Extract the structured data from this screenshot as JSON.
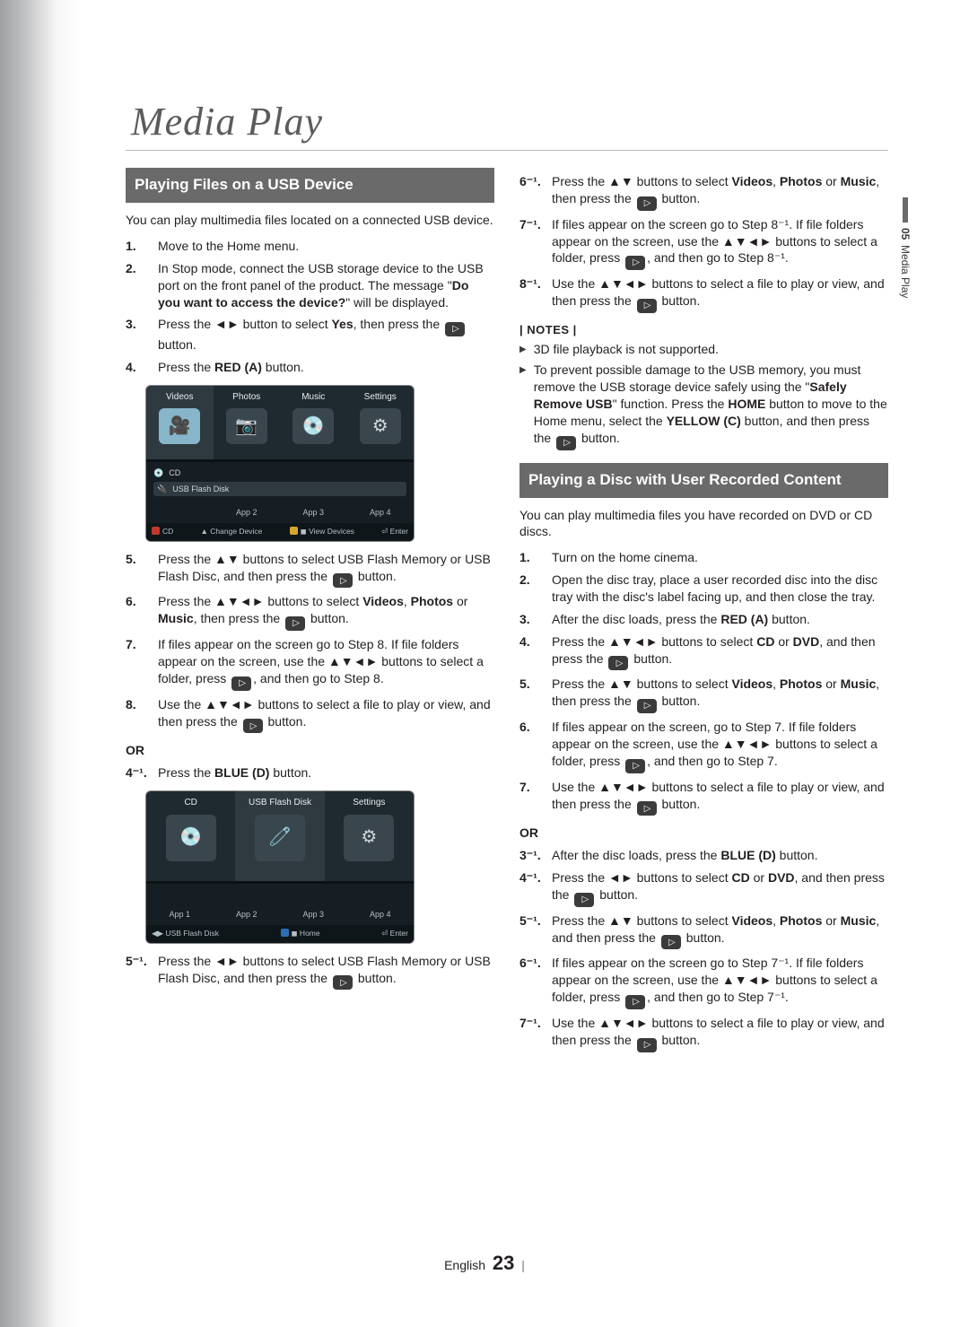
{
  "chapter_title": "Media Play",
  "chapter_title_fontsize": 44,
  "side_tab": {
    "number": "05",
    "label": "Media Play"
  },
  "footer": {
    "lang": "English",
    "page": "23"
  },
  "colLeft": {
    "section1_title": "Playing Files on a USB Device",
    "intro": "You can play multimedia files located on a connected USB device.",
    "steps_a": [
      {
        "n": "1.",
        "text": "Move to the Home menu."
      },
      {
        "n": "2.",
        "text_html": "In Stop mode, connect the USB storage device to the USB port on the front panel of the product. The message \"<b>Do you want to access the device?</b>\" will be displayed."
      },
      {
        "n": "3.",
        "text_html": "Press the <span class='arrows'>◄►</span> button to select <b>Yes</b>, then press the <span class='enter-icon' data-name='enter-icon' data-interactable='false'></span> button."
      },
      {
        "n": "4.",
        "text_html": "Press the <b>RED (A)</b> button."
      }
    ],
    "shot1": {
      "tiles": [
        {
          "key": "videos",
          "label": "Videos",
          "emoji": "🎥",
          "selected": true
        },
        {
          "key": "photos",
          "label": "Photos",
          "emoji": "📷",
          "selected": false
        },
        {
          "key": "music",
          "label": "Music",
          "emoji": "💿",
          "selected": false
        },
        {
          "key": "settings",
          "label": "Settings",
          "emoji": "⚙",
          "selected": false
        }
      ],
      "mid_rows": [
        {
          "icon": "💿",
          "text": "CD",
          "selected": false
        },
        {
          "icon": "🔌",
          "text": "USB Flash Disk",
          "selected": true
        }
      ],
      "apps": [
        "",
        "App 2",
        "App 3",
        "App 4"
      ],
      "legend": [
        {
          "chip": "red",
          "text": "CD"
        },
        {
          "chip": "",
          "text": "▲ Change Device"
        },
        {
          "chip": "yellow",
          "text": "◼ View Devices"
        },
        {
          "chip": "",
          "text": "⏎ Enter"
        }
      ]
    },
    "steps_b": [
      {
        "n": "5.",
        "text_html": "Press the <span class='arrows'>▲▼</span> buttons to select USB Flash Memory or USB Flash Disc, and then press the <span class='enter-icon' data-name='enter-icon' data-interactable='false'></span> button."
      },
      {
        "n": "6.",
        "text_html": "Press the <span class='arrows'>▲▼◄►</span> buttons to select <b>Videos</b>, <b>Photos</b> or <b>Music</b>, then press the <span class='enter-icon' data-name='enter-icon' data-interactable='false'></span> button."
      },
      {
        "n": "7.",
        "text_html": "If files appear on the screen go to Step 8. If file folders appear on the screen, use the <span class='arrows'>▲▼◄►</span> buttons to select a folder, press <span class='enter-icon' data-name='enter-icon' data-interactable='false'></span>, and then go to Step 8."
      },
      {
        "n": "8.",
        "text_html": "Use the <span class='arrows'>▲▼◄►</span> buttons to select a file to play or view, and then press the <span class='enter-icon' data-name='enter-icon' data-interactable='false'></span> button."
      }
    ],
    "or_label": "OR",
    "step_4_1": {
      "n": "4⁻¹.",
      "text_html": "Press the <b>BLUE (D)</b> button."
    },
    "shot2": {
      "tiles": [
        {
          "key": "cd",
          "label": "CD",
          "emoji": "💿",
          "selected": false
        },
        {
          "key": "usb",
          "label": "USB Flash Disk",
          "emoji": "🧷",
          "selected": true
        },
        {
          "key": "settings",
          "label": "Settings",
          "emoji": "⚙",
          "selected": false
        }
      ],
      "apps": [
        "App 1",
        "App 2",
        "App 3",
        "App 4"
      ],
      "legend": [
        {
          "chip": "",
          "text": "◀▶ USB Flash Disk"
        },
        {
          "chip": "blue",
          "text": "◼ Home"
        },
        {
          "chip": "",
          "text": "⏎ Enter"
        }
      ]
    },
    "step_5_1": {
      "n": "5⁻¹.",
      "text_html": "Press the <span class='arrows'>◄►</span> buttons to select USB Flash Memory or USB Flash Disc, and then press the <span class='enter-icon' data-name='enter-icon' data-interactable='false'></span> button."
    }
  },
  "colRight": {
    "steps_top": [
      {
        "n": "6⁻¹.",
        "text_html": "Press the <span class='arrows'>▲▼</span> buttons to select <b>Videos</b>, <b>Photos</b> or <b>Music</b>, then press the <span class='enter-icon' data-name='enter-icon' data-interactable='false'></span> button."
      },
      {
        "n": "7⁻¹.",
        "text_html": "If files appear on the screen go to Step 8⁻¹. If file folders appear on the screen, use the <span class='arrows'>▲▼◄►</span> buttons to select a folder, press <span class='enter-icon' data-name='enter-icon' data-interactable='false'></span>, and then go to Step 8⁻¹."
      },
      {
        "n": "8⁻¹.",
        "text_html": "Use the <span class='arrows'>▲▼◄►</span> buttons to select a file to play or view, and then press the <span class='enter-icon' data-name='enter-icon' data-interactable='false'></span> button."
      }
    ],
    "notes_label": "| NOTES |",
    "notes": [
      "3D file playback is not supported.",
      "To prevent possible damage to the USB memory, you must remove the USB storage device safely using the \"<b>Safely Remove USB</b>\" function. Press the <b>HOME</b> button to move to the Home menu, select the <b>YELLOW (C)</b> button, and then press the <span class='enter-icon' data-name='enter-icon' data-interactable='false'></span> button."
    ],
    "section2_title": "Playing a Disc with User Recorded Content",
    "intro2": "You can play multimedia files you have recorded on DVD or CD discs.",
    "steps_c": [
      {
        "n": "1.",
        "text": "Turn on the home cinema."
      },
      {
        "n": "2.",
        "text": "Open the disc tray, place a user recorded disc into the disc tray with the disc's label facing up, and then close the tray."
      },
      {
        "n": "3.",
        "text_html": "After the disc loads, press the <b>RED (A)</b> button."
      },
      {
        "n": "4.",
        "text_html": "Press the <span class='arrows'>▲▼◄►</span> buttons to select <b>CD</b> or <b>DVD</b>, and then press the <span class='enter-icon' data-name='enter-icon' data-interactable='false'></span> button."
      },
      {
        "n": "5.",
        "text_html": "Press the <span class='arrows'>▲▼</span> buttons to select <b>Videos</b>, <b>Photos</b> or <b>Music</b>, then press the <span class='enter-icon' data-name='enter-icon' data-interactable='false'></span> button."
      },
      {
        "n": "6.",
        "text_html": "If files appear on the screen, go to Step 7. If file folders appear on the screen, use the <span class='arrows'>▲▼◄►</span> buttons to select a folder, press <span class='enter-icon' data-name='enter-icon' data-interactable='false'></span>, and then go to Step 7."
      },
      {
        "n": "7.",
        "text_html": "Use the <span class='arrows'>▲▼◄►</span> buttons to select a file to play or view, and then press the <span class='enter-icon' data-name='enter-icon' data-interactable='false'></span> button."
      }
    ],
    "or_label": "OR",
    "steps_d": [
      {
        "n": "3⁻¹.",
        "text_html": "After the disc loads, press the <b>BLUE (D)</b> button."
      },
      {
        "n": "4⁻¹.",
        "text_html": "Press the <span class='arrows'>◄►</span> buttons to select <b>CD</b> or <b>DVD</b>, and then press the <span class='enter-icon' data-name='enter-icon' data-interactable='false'></span> button."
      },
      {
        "n": "5⁻¹.",
        "text_html": "Press the <span class='arrows'>▲▼</span> buttons to select <b>Videos</b>, <b>Photos</b> or <b>Music</b>, and then press the <span class='enter-icon' data-name='enter-icon' data-interactable='false'></span> button."
      },
      {
        "n": "6⁻¹.",
        "text_html": "If files appear on the screen go to Step 7⁻¹. If file folders appear on the screen, use the <span class='arrows'>▲▼◄►</span> buttons to select a folder, press <span class='enter-icon' data-name='enter-icon' data-interactable='false'></span>, and then go to Step 7⁻¹."
      },
      {
        "n": "7⁻¹.",
        "text_html": "Use the <span class='arrows'>▲▼◄►</span> buttons to select a file to play or view, and then press the <span class='enter-icon' data-name='enter-icon' data-interactable='false'></span> button."
      }
    ]
  },
  "colors": {
    "section_bar_bg": "#6a6a6a",
    "section_bar_fg": "#ffffff",
    "text": "#231f20",
    "hr": "#b9b9b9",
    "shot_bg": "#1f2a30"
  }
}
